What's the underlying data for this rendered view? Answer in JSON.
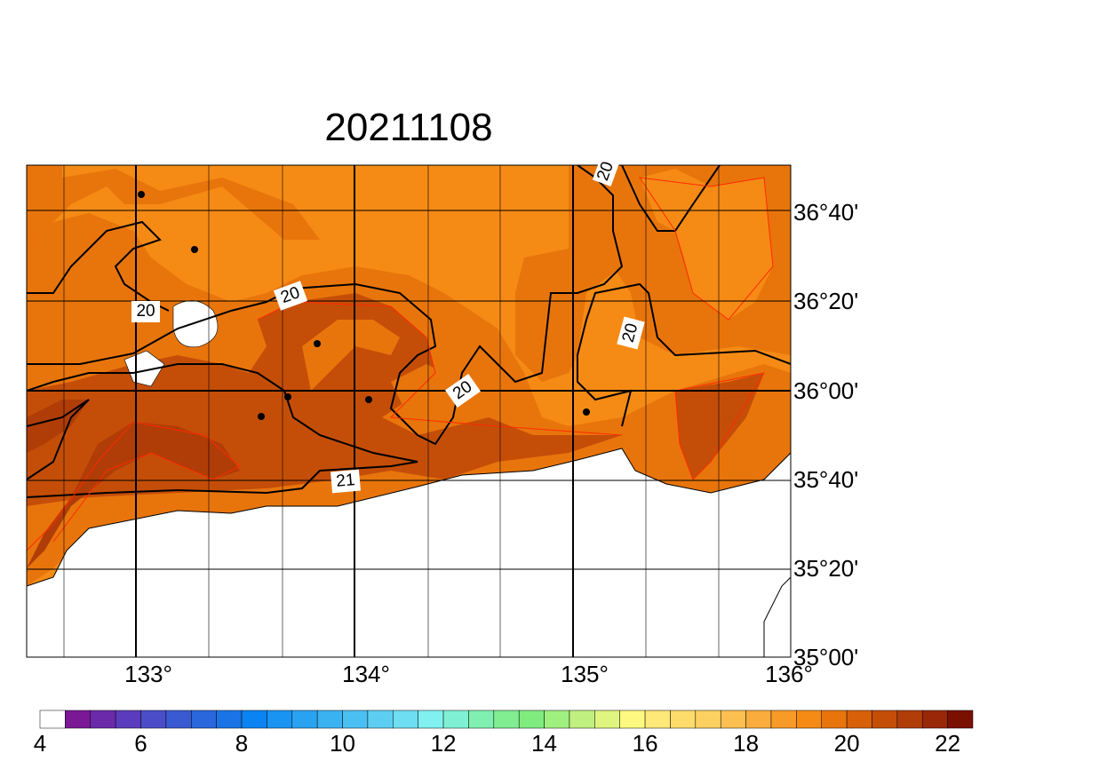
{
  "title": "20211108",
  "lon_labels": [
    "133°",
    "134°",
    "135°",
    "136°"
  ],
  "lat_labels": [
    "36°40'",
    "36°20'",
    "36°00'",
    "35°40'",
    "35°20'",
    "35°00'"
  ],
  "contour_labels": [
    "20",
    "20",
    "20",
    "20",
    "20",
    "21"
  ],
  "colorbar": {
    "range": [
      4,
      22.5
    ],
    "ticks": [
      4,
      6,
      8,
      10,
      12,
      14,
      16,
      18,
      20,
      22
    ],
    "colors": [
      "#ffffff",
      "#7a1896",
      "#6a2aaa",
      "#5a3cbc",
      "#4a4cc8",
      "#3a5ad2",
      "#2a66dc",
      "#1a74e6",
      "#0a84f2",
      "#1a94f2",
      "#2aa2f2",
      "#3ab2f2",
      "#4ac0f2",
      "#5ccef2",
      "#6edef2",
      "#80f0f0",
      "#80f0d4",
      "#80f0b0",
      "#80ee90",
      "#80ec80",
      "#a0f080",
      "#c0f080",
      "#e0f480",
      "#fcf880",
      "#fde878",
      "#fddc6c",
      "#fdd062",
      "#fcc050",
      "#faac3c",
      "#f89a28",
      "#f58a14",
      "#e8740c",
      "#d86008",
      "#c44e08",
      "#b03c08",
      "#982808",
      "#7a1000"
    ]
  }
}
